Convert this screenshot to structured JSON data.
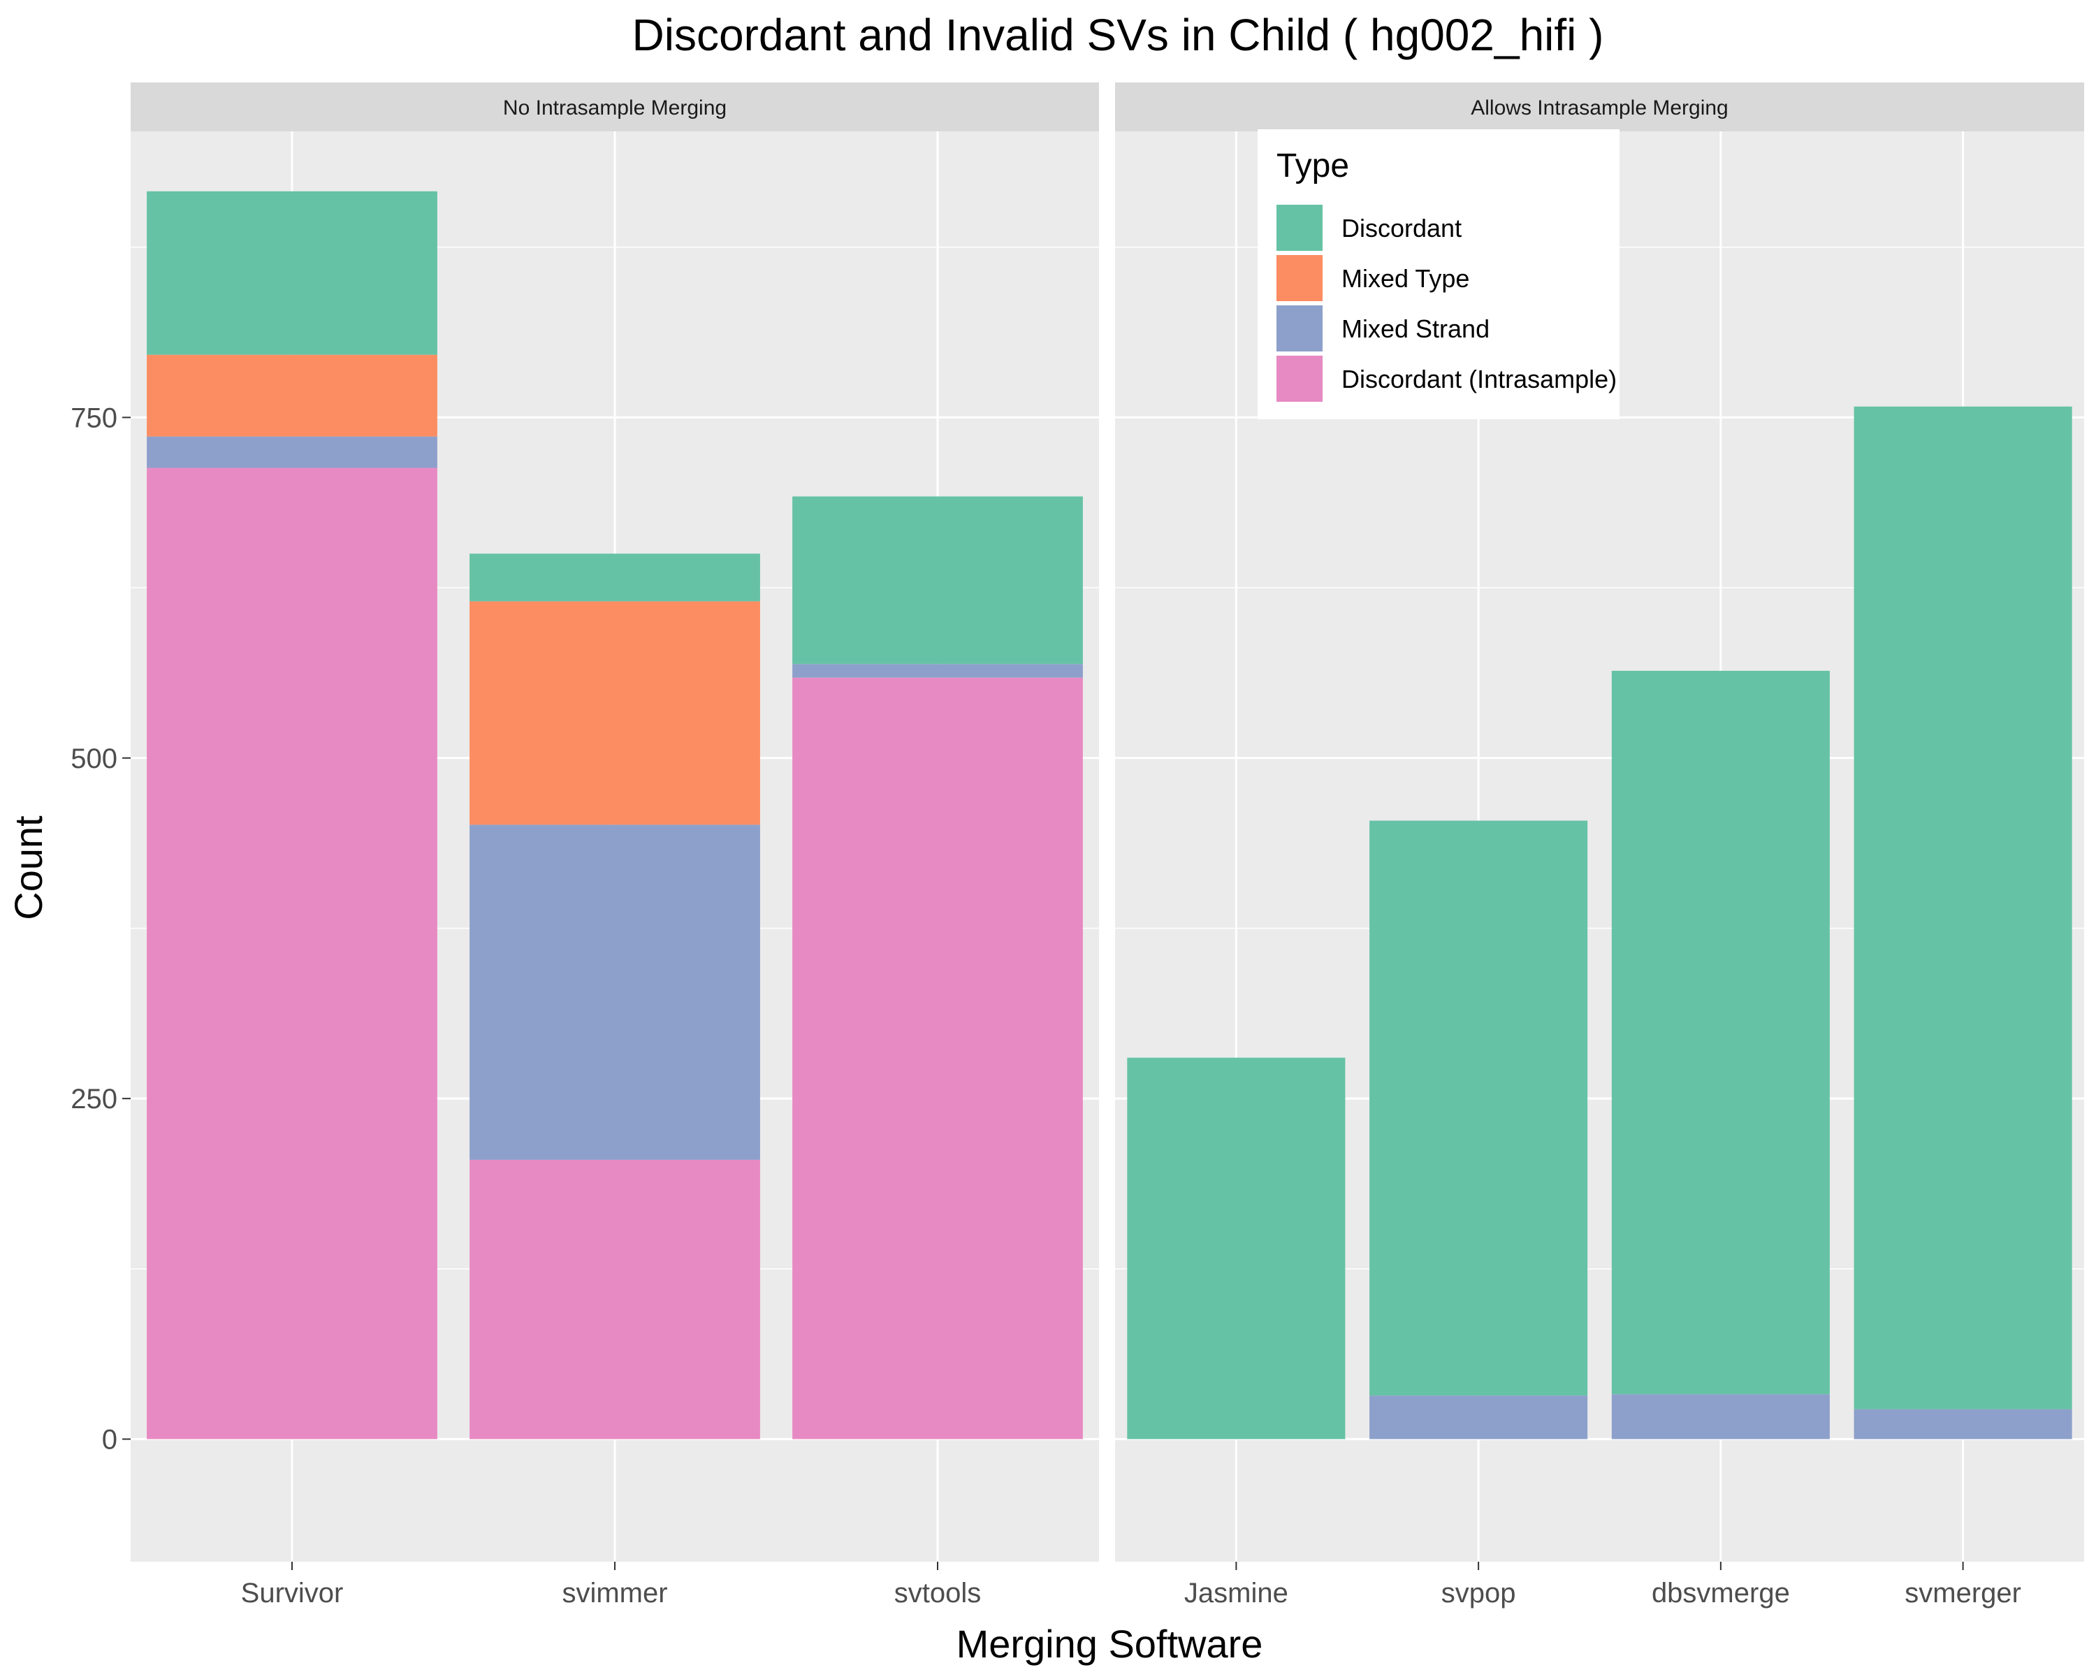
{
  "chart_data": {
    "type": "bar",
    "stacked": true,
    "title": "Discordant and Invalid SVs in Child  ( hg002_hifi )",
    "xlabel": "Merging Software",
    "ylabel": "Count",
    "ylim": [
      -90,
      960
    ],
    "yticks": [
      0,
      250,
      500,
      750
    ],
    "grid": true,
    "legend": {
      "title": "Type",
      "placement": "top-right",
      "entries": [
        "Discordant",
        "Mixed Type",
        "Mixed Strand",
        "Discordant (Intrasample)"
      ]
    },
    "colors": {
      "Discordant": "#66c2a5",
      "Mixed Type": "#fc8d62",
      "Mixed Strand": "#8da0cb",
      "Discordant (Intrasample)": "#e78ac3"
    },
    "stack_order": [
      "Discordant (Intrasample)",
      "Mixed Strand",
      "Mixed Type",
      "Discordant"
    ],
    "panels": [
      {
        "label": "No Intrasample Merging",
        "categories": [
          "Survivor",
          "svimmer",
          "svtools"
        ],
        "series": [
          {
            "name": "Discordant",
            "values": [
              120,
              35,
              123
            ]
          },
          {
            "name": "Mixed Type",
            "values": [
              60,
              164,
              0
            ]
          },
          {
            "name": "Mixed Strand",
            "values": [
              23,
              246,
              10
            ]
          },
          {
            "name": "Discordant (Intrasample)",
            "values": [
              713,
              205,
              559
            ]
          }
        ]
      },
      {
        "label": "Allows Intrasample Merging",
        "categories": [
          "Jasmine",
          "svpop",
          "dbsvmerge",
          "svmerger"
        ],
        "series": [
          {
            "name": "Discordant",
            "values": [
              280,
              422,
              531,
              736
            ]
          },
          {
            "name": "Mixed Type",
            "values": [
              0,
              0,
              0,
              0
            ]
          },
          {
            "name": "Mixed Strand",
            "values": [
              0,
              32,
              33,
              22
            ]
          },
          {
            "name": "Discordant (Intrasample)",
            "values": [
              0,
              0,
              0,
              0
            ]
          }
        ]
      }
    ]
  }
}
